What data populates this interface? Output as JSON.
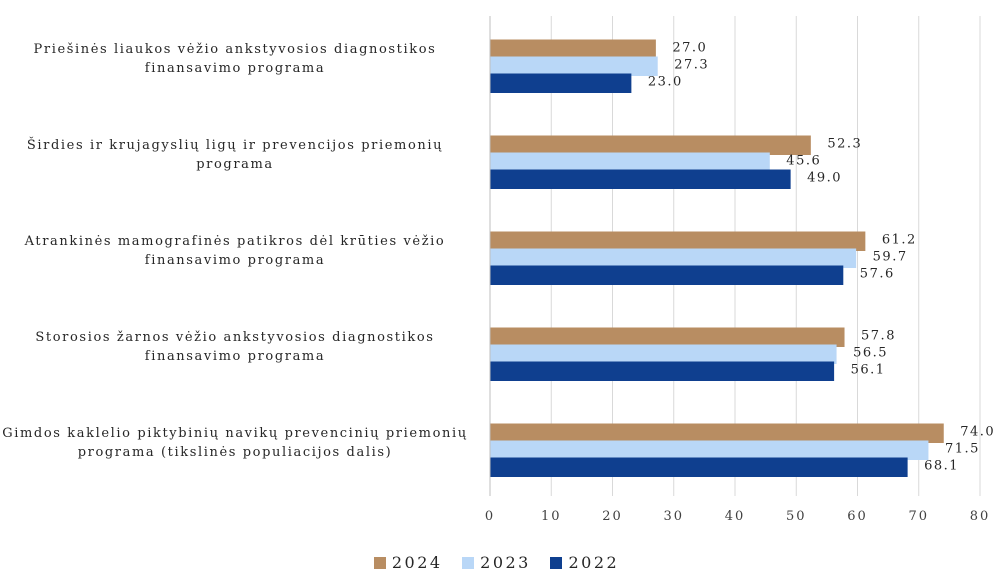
{
  "chart_data": {
    "type": "bar",
    "orientation": "horizontal",
    "categories": [
      "Priešinės liaukos vėžio ankstyvosios diagnostikos finansavimo programa",
      "Širdies ir krujagyslių ligų ir prevencijos priemonių programa",
      "Atrankinės mamografinės patikros dėl krūties vėžio finansavimo programa",
      "Storosios žarnos vėžio ankstyvosios diagnostikos finansavimo programa",
      "Gimdos kaklelio piktybinių navikų prevencinių priemonių programa (tikslinės populiacijos dalis)"
    ],
    "series": [
      {
        "name": "2024",
        "color": "#B88D62",
        "values": [
          27.0,
          52.3,
          61.2,
          57.8,
          74.0
        ],
        "labels": [
          "27.0",
          "52.3",
          "61.2",
          "57.8",
          "74.0"
        ]
      },
      {
        "name": "2023",
        "color": "#B9D7F7",
        "values": [
          27.3,
          45.6,
          59.7,
          56.5,
          71.5
        ],
        "labels": [
          "27.3",
          "45.6",
          "59.7",
          "56.5",
          "71.5"
        ]
      },
      {
        "name": "2022",
        "color": "#0F3F8F",
        "values": [
          23.0,
          49.0,
          57.6,
          56.1,
          68.1
        ],
        "labels": [
          "23.0",
          "49.0",
          "57.6",
          "56.1",
          "68.1"
        ]
      }
    ],
    "xlim": [
      0,
      80
    ],
    "xticks": [
      0,
      10,
      20,
      30,
      40,
      50,
      60,
      70,
      80
    ],
    "grid": "vertical",
    "legend_position": "bottom"
  }
}
